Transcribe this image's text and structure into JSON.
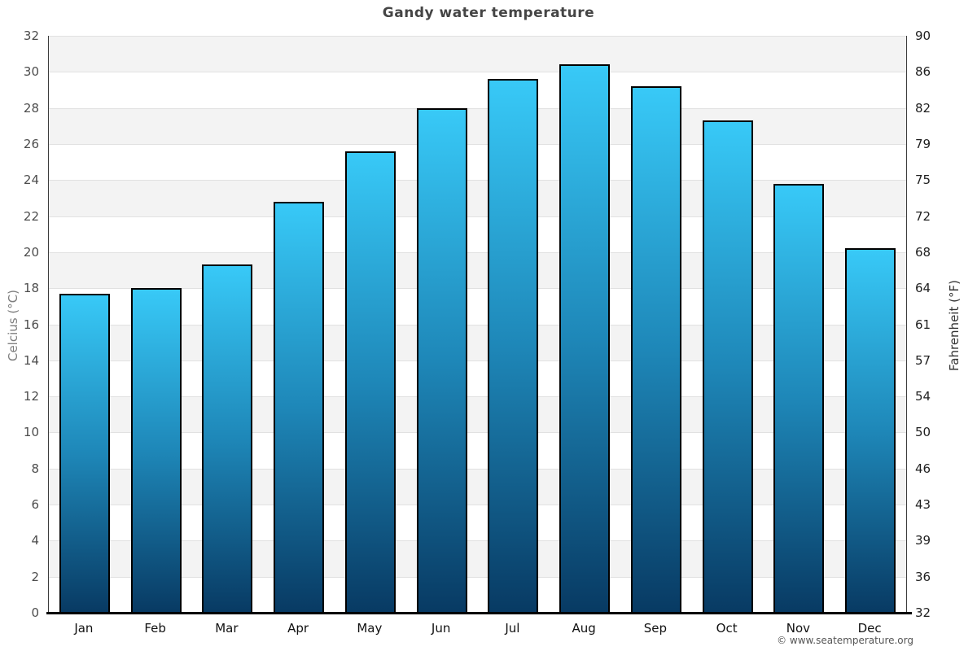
{
  "header": {
    "title": "Gandy water temperature"
  },
  "footer": {
    "credit": "© www.seatemperature.org"
  },
  "chart_data": {
    "type": "bar",
    "title": "Gandy water temperature",
    "categories": [
      "Jan",
      "Feb",
      "Mar",
      "Apr",
      "May",
      "Jun",
      "Jul",
      "Aug",
      "Sep",
      "Oct",
      "Nov",
      "Dec"
    ],
    "series": [
      {
        "name": "Water temperature (°C)",
        "unit": "°C",
        "values": [
          17.7,
          18.0,
          19.3,
          22.8,
          25.6,
          28.0,
          29.6,
          30.4,
          29.2,
          27.3,
          23.8,
          20.2
        ]
      },
      {
        "name": "Water temperature (°F)",
        "unit": "°F",
        "values": [
          63.9,
          64.4,
          66.7,
          73.0,
          78.1,
          82.4,
          85.3,
          86.7,
          84.6,
          81.1,
          74.8,
          68.4
        ]
      }
    ],
    "axes": {
      "left": {
        "label": "Celcius (°C)",
        "min": 0,
        "max": 32,
        "step": 2,
        "ticks": [
          32,
          30,
          28,
          26,
          24,
          22,
          20,
          18,
          16,
          14,
          12,
          10,
          8,
          6,
          4,
          2,
          0
        ]
      },
      "right": {
        "label": "Fahrenheit (°F)",
        "ticks": [
          90,
          86,
          82,
          79,
          75,
          72,
          68,
          64,
          61,
          57,
          54,
          50,
          46,
          43,
          39,
          36,
          32
        ]
      }
    },
    "legend": "none",
    "grid": {
      "style": "alternating horizontal bands",
      "band_color": "#f3f3f3",
      "line_color": "#e1e1e1"
    },
    "bar_style": {
      "gradient_top": "#38c9f7",
      "gradient_mid": "#1e87b8",
      "gradient_bottom": "#083a63",
      "border_color": "#000000"
    }
  }
}
